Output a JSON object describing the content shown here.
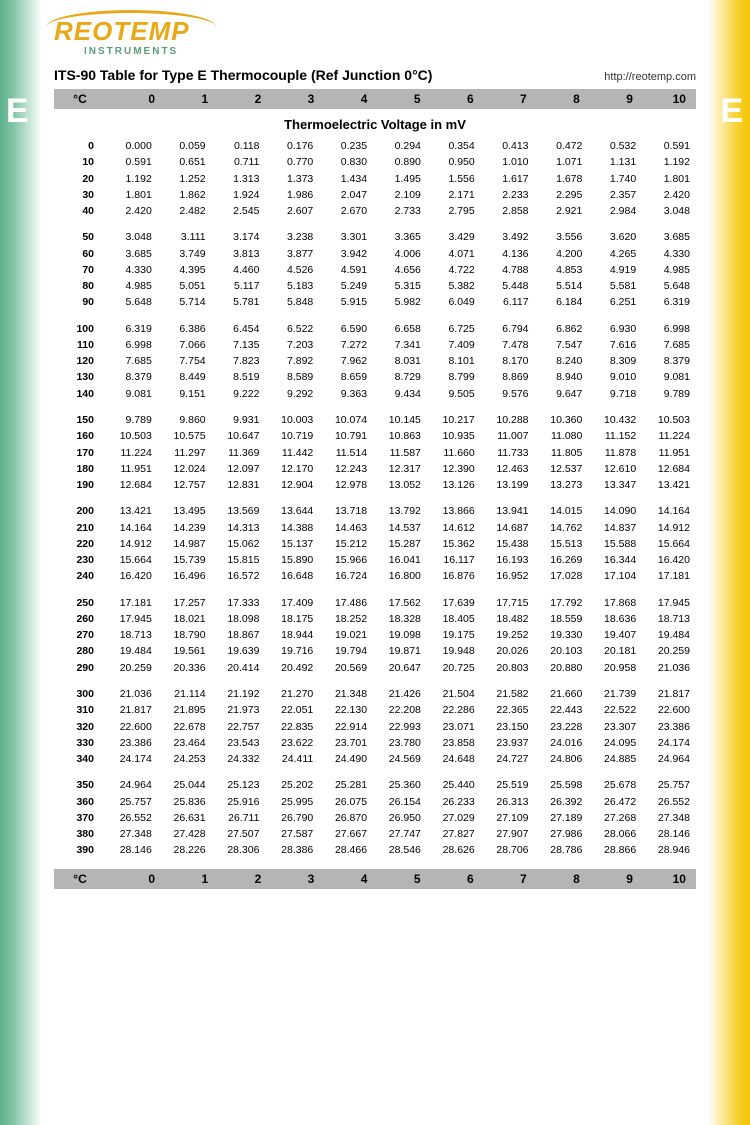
{
  "brand": {
    "main": "REOTEMP",
    "sub": "INSTRUMENTS"
  },
  "title": "ITS-90 Table for Type E Thermocouple (Ref Junction 0°C)",
  "url": "http://reotemp.com",
  "side_letter": "E",
  "colors": {
    "left_band": "#5fb08a",
    "right_band": "#f5c400",
    "header_bg": "#b5b5b5",
    "logo_orange": "#e8a817",
    "logo_green": "#5b9a7c"
  },
  "col_headers": [
    "°C",
    "0",
    "1",
    "2",
    "3",
    "4",
    "5",
    "6",
    "7",
    "8",
    "9",
    "10"
  ],
  "subheader": "Thermoelectric Voltage in mV",
  "blocks": [
    [
      {
        "t": 0,
        "v": [
          "0.000",
          "0.059",
          "0.118",
          "0.176",
          "0.235",
          "0.294",
          "0.354",
          "0.413",
          "0.472",
          "0.532",
          "0.591"
        ]
      },
      {
        "t": 10,
        "v": [
          "0.591",
          "0.651",
          "0.711",
          "0.770",
          "0.830",
          "0.890",
          "0.950",
          "1.010",
          "1.071",
          "1.131",
          "1.192"
        ]
      },
      {
        "t": 20,
        "v": [
          "1.192",
          "1.252",
          "1.313",
          "1.373",
          "1.434",
          "1.495",
          "1.556",
          "1.617",
          "1.678",
          "1.740",
          "1.801"
        ]
      },
      {
        "t": 30,
        "v": [
          "1.801",
          "1.862",
          "1.924",
          "1.986",
          "2.047",
          "2.109",
          "2.171",
          "2.233",
          "2.295",
          "2.357",
          "2.420"
        ]
      },
      {
        "t": 40,
        "v": [
          "2.420",
          "2.482",
          "2.545",
          "2.607",
          "2.670",
          "2.733",
          "2.795",
          "2.858",
          "2.921",
          "2.984",
          "3.048"
        ]
      }
    ],
    [
      {
        "t": 50,
        "v": [
          "3.048",
          "3.111",
          "3.174",
          "3.238",
          "3.301",
          "3.365",
          "3.429",
          "3.492",
          "3.556",
          "3.620",
          "3.685"
        ]
      },
      {
        "t": 60,
        "v": [
          "3.685",
          "3.749",
          "3.813",
          "3.877",
          "3.942",
          "4.006",
          "4.071",
          "4.136",
          "4.200",
          "4.265",
          "4.330"
        ]
      },
      {
        "t": 70,
        "v": [
          "4.330",
          "4.395",
          "4.460",
          "4.526",
          "4.591",
          "4.656",
          "4.722",
          "4.788",
          "4.853",
          "4.919",
          "4.985"
        ]
      },
      {
        "t": 80,
        "v": [
          "4.985",
          "5.051",
          "5.117",
          "5.183",
          "5.249",
          "5.315",
          "5.382",
          "5.448",
          "5.514",
          "5.581",
          "5.648"
        ]
      },
      {
        "t": 90,
        "v": [
          "5.648",
          "5.714",
          "5.781",
          "5.848",
          "5.915",
          "5.982",
          "6.049",
          "6.117",
          "6.184",
          "6.251",
          "6.319"
        ]
      }
    ],
    [
      {
        "t": 100,
        "v": [
          "6.319",
          "6.386",
          "6.454",
          "6.522",
          "6.590",
          "6.658",
          "6.725",
          "6.794",
          "6.862",
          "6.930",
          "6.998"
        ]
      },
      {
        "t": 110,
        "v": [
          "6.998",
          "7.066",
          "7.135",
          "7.203",
          "7.272",
          "7.341",
          "7.409",
          "7.478",
          "7.547",
          "7.616",
          "7.685"
        ]
      },
      {
        "t": 120,
        "v": [
          "7.685",
          "7.754",
          "7.823",
          "7.892",
          "7.962",
          "8.031",
          "8.101",
          "8.170",
          "8.240",
          "8.309",
          "8.379"
        ]
      },
      {
        "t": 130,
        "v": [
          "8.379",
          "8.449",
          "8.519",
          "8.589",
          "8.659",
          "8.729",
          "8.799",
          "8.869",
          "8.940",
          "9.010",
          "9.081"
        ]
      },
      {
        "t": 140,
        "v": [
          "9.081",
          "9.151",
          "9.222",
          "9.292",
          "9.363",
          "9.434",
          "9.505",
          "9.576",
          "9.647",
          "9.718",
          "9.789"
        ]
      }
    ],
    [
      {
        "t": 150,
        "v": [
          "9.789",
          "9.860",
          "9.931",
          "10.003",
          "10.074",
          "10.145",
          "10.217",
          "10.288",
          "10.360",
          "10.432",
          "10.503"
        ]
      },
      {
        "t": 160,
        "v": [
          "10.503",
          "10.575",
          "10.647",
          "10.719",
          "10.791",
          "10.863",
          "10.935",
          "11.007",
          "11.080",
          "11.152",
          "11.224"
        ]
      },
      {
        "t": 170,
        "v": [
          "11.224",
          "11.297",
          "11.369",
          "11.442",
          "11.514",
          "11.587",
          "11.660",
          "11.733",
          "11.805",
          "11.878",
          "11.951"
        ]
      },
      {
        "t": 180,
        "v": [
          "11.951",
          "12.024",
          "12.097",
          "12.170",
          "12.243",
          "12.317",
          "12.390",
          "12.463",
          "12.537",
          "12.610",
          "12.684"
        ]
      },
      {
        "t": 190,
        "v": [
          "12.684",
          "12.757",
          "12.831",
          "12.904",
          "12.978",
          "13.052",
          "13.126",
          "13.199",
          "13.273",
          "13.347",
          "13.421"
        ]
      }
    ],
    [
      {
        "t": 200,
        "v": [
          "13.421",
          "13.495",
          "13.569",
          "13.644",
          "13.718",
          "13.792",
          "13.866",
          "13.941",
          "14.015",
          "14.090",
          "14.164"
        ]
      },
      {
        "t": 210,
        "v": [
          "14.164",
          "14.239",
          "14.313",
          "14.388",
          "14.463",
          "14.537",
          "14.612",
          "14.687",
          "14.762",
          "14.837",
          "14.912"
        ]
      },
      {
        "t": 220,
        "v": [
          "14.912",
          "14.987",
          "15.062",
          "15.137",
          "15.212",
          "15.287",
          "15.362",
          "15.438",
          "15.513",
          "15.588",
          "15.664"
        ]
      },
      {
        "t": 230,
        "v": [
          "15.664",
          "15.739",
          "15.815",
          "15.890",
          "15.966",
          "16.041",
          "16.117",
          "16.193",
          "16.269",
          "16.344",
          "16.420"
        ]
      },
      {
        "t": 240,
        "v": [
          "16.420",
          "16.496",
          "16.572",
          "16.648",
          "16.724",
          "16.800",
          "16.876",
          "16.952",
          "17.028",
          "17.104",
          "17.181"
        ]
      }
    ],
    [
      {
        "t": 250,
        "v": [
          "17.181",
          "17.257",
          "17.333",
          "17.409",
          "17.486",
          "17.562",
          "17.639",
          "17.715",
          "17.792",
          "17.868",
          "17.945"
        ]
      },
      {
        "t": 260,
        "v": [
          "17.945",
          "18.021",
          "18.098",
          "18.175",
          "18.252",
          "18.328",
          "18.405",
          "18.482",
          "18.559",
          "18.636",
          "18.713"
        ]
      },
      {
        "t": 270,
        "v": [
          "18.713",
          "18.790",
          "18.867",
          "18.944",
          "19.021",
          "19.098",
          "19.175",
          "19.252",
          "19.330",
          "19.407",
          "19.484"
        ]
      },
      {
        "t": 280,
        "v": [
          "19.484",
          "19.561",
          "19.639",
          "19.716",
          "19.794",
          "19.871",
          "19.948",
          "20.026",
          "20.103",
          "20.181",
          "20.259"
        ]
      },
      {
        "t": 290,
        "v": [
          "20.259",
          "20.336",
          "20.414",
          "20.492",
          "20.569",
          "20.647",
          "20.725",
          "20.803",
          "20.880",
          "20.958",
          "21.036"
        ]
      }
    ],
    [
      {
        "t": 300,
        "v": [
          "21.036",
          "21.114",
          "21.192",
          "21.270",
          "21.348",
          "21.426",
          "21.504",
          "21.582",
          "21.660",
          "21.739",
          "21.817"
        ]
      },
      {
        "t": 310,
        "v": [
          "21.817",
          "21.895",
          "21.973",
          "22.051",
          "22.130",
          "22.208",
          "22.286",
          "22.365",
          "22.443",
          "22.522",
          "22.600"
        ]
      },
      {
        "t": 320,
        "v": [
          "22.600",
          "22.678",
          "22.757",
          "22.835",
          "22.914",
          "22.993",
          "23.071",
          "23.150",
          "23.228",
          "23.307",
          "23.386"
        ]
      },
      {
        "t": 330,
        "v": [
          "23.386",
          "23.464",
          "23.543",
          "23.622",
          "23.701",
          "23.780",
          "23.858",
          "23.937",
          "24.016",
          "24.095",
          "24.174"
        ]
      },
      {
        "t": 340,
        "v": [
          "24.174",
          "24.253",
          "24.332",
          "24.411",
          "24.490",
          "24.569",
          "24.648",
          "24.727",
          "24.806",
          "24.885",
          "24.964"
        ]
      }
    ],
    [
      {
        "t": 350,
        "v": [
          "24.964",
          "25.044",
          "25.123",
          "25.202",
          "25.281",
          "25.360",
          "25.440",
          "25.519",
          "25.598",
          "25.678",
          "25.757"
        ]
      },
      {
        "t": 360,
        "v": [
          "25.757",
          "25.836",
          "25.916",
          "25.995",
          "26.075",
          "26.154",
          "26.233",
          "26.313",
          "26.392",
          "26.472",
          "26.552"
        ]
      },
      {
        "t": 370,
        "v": [
          "26.552",
          "26.631",
          "26.711",
          "26.790",
          "26.870",
          "26.950",
          "27.029",
          "27.109",
          "27.189",
          "27.268",
          "27.348"
        ]
      },
      {
        "t": 380,
        "v": [
          "27.348",
          "27.428",
          "27.507",
          "27.587",
          "27.667",
          "27.747",
          "27.827",
          "27.907",
          "27.986",
          "28.066",
          "28.146"
        ]
      },
      {
        "t": 390,
        "v": [
          "28.146",
          "28.226",
          "28.306",
          "28.386",
          "28.466",
          "28.546",
          "28.626",
          "28.706",
          "28.786",
          "28.866",
          "28.946"
        ]
      }
    ]
  ]
}
